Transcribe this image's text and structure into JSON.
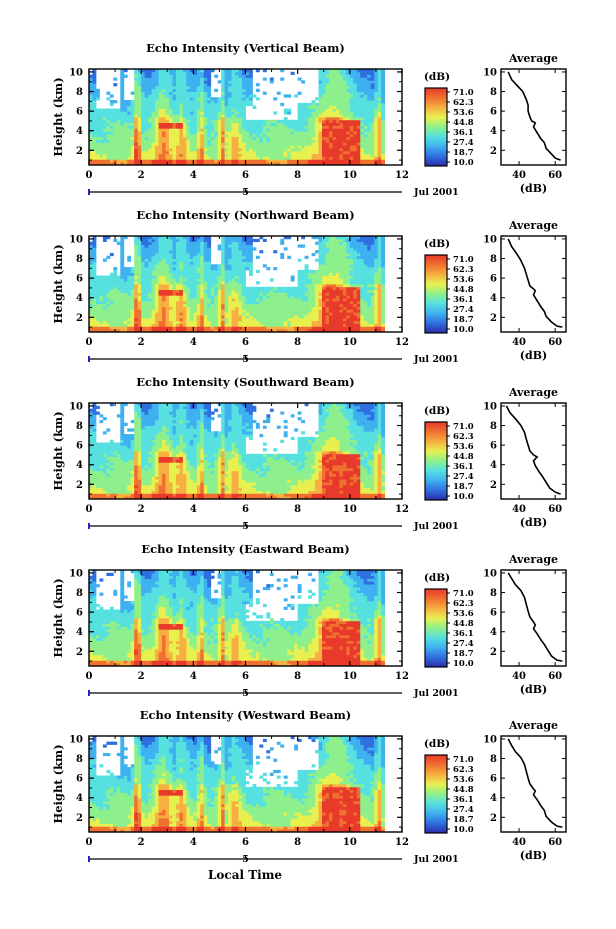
{
  "figure": {
    "date_label": "Jul 2001",
    "x_axis_title": "Local Time"
  },
  "colorbar": {
    "unit": "(dB)",
    "ticks": [
      "71.0",
      "62.3",
      "53.6",
      "44.8",
      "36.1",
      "27.4",
      "18.7",
      "10.0"
    ],
    "colors": [
      "#2c2ca8",
      "#2f6fe0",
      "#3fb0f0",
      "#56e0e0",
      "#8ef08c",
      "#e8f050",
      "#f5b040",
      "#f07030",
      "#e83a2a"
    ]
  },
  "average_panel_title": "Average",
  "average_x_unit": "(dB)",
  "chart_data": [
    {
      "type": "heatmap",
      "title": "Echo Intensity (Vertical Beam)",
      "ylabel": "Height (km)",
      "x_ticks": [
        "0",
        "2",
        "4",
        "6",
        "8",
        "10",
        "12"
      ],
      "y_ticks": [
        "2",
        "4",
        "6",
        "8",
        "10"
      ],
      "secondary_x_label": "5",
      "xlim": [
        0,
        12
      ],
      "ylim": [
        0.5,
        10.3
      ],
      "value_range_db": [
        10.0,
        71.0
      ],
      "average": {
        "xlabel": "(dB)",
        "x_ticks": [
          "40",
          "60"
        ],
        "xlim": [
          30,
          66
        ],
        "ylim": [
          0.5,
          10.3
        ],
        "profile": [
          [
            34,
            10.0
          ],
          [
            36,
            9.2
          ],
          [
            39,
            8.6
          ],
          [
            42,
            8.0
          ],
          [
            44,
            7.2
          ],
          [
            45,
            6.6
          ],
          [
            45,
            6.0
          ],
          [
            46,
            5.4
          ],
          [
            47,
            5.0
          ],
          [
            49,
            4.8
          ],
          [
            48,
            4.4
          ],
          [
            50,
            3.8
          ],
          [
            52,
            3.2
          ],
          [
            54,
            2.8
          ],
          [
            55,
            2.2
          ],
          [
            58,
            1.6
          ],
          [
            60,
            1.2
          ],
          [
            63,
            1.0
          ]
        ]
      }
    },
    {
      "type": "heatmap",
      "title": "Echo Intensity (Northward Beam)",
      "ylabel": "Height (km)",
      "x_ticks": [
        "0",
        "2",
        "4",
        "6",
        "8",
        "10",
        "12"
      ],
      "y_ticks": [
        "2",
        "4",
        "6",
        "8",
        "10"
      ],
      "secondary_x_label": "5",
      "xlim": [
        0,
        12
      ],
      "ylim": [
        0.5,
        10.3
      ],
      "value_range_db": [
        10.0,
        71.0
      ],
      "average": {
        "xlabel": "(dB)",
        "x_ticks": [
          "40",
          "60"
        ],
        "xlim": [
          30,
          66
        ],
        "ylim": [
          0.5,
          10.3
        ],
        "profile": [
          [
            34,
            10.0
          ],
          [
            36,
            9.2
          ],
          [
            39,
            8.4
          ],
          [
            41,
            7.8
          ],
          [
            43,
            7.0
          ],
          [
            44,
            6.4
          ],
          [
            45,
            5.8
          ],
          [
            46,
            5.2
          ],
          [
            48,
            4.9
          ],
          [
            49,
            4.7
          ],
          [
            48,
            4.3
          ],
          [
            50,
            3.7
          ],
          [
            52,
            3.1
          ],
          [
            54,
            2.6
          ],
          [
            55,
            2.1
          ],
          [
            58,
            1.5
          ],
          [
            61,
            1.1
          ],
          [
            64,
            1.0
          ]
        ]
      }
    },
    {
      "type": "heatmap",
      "title": "Echo Intensity (Southward Beam)",
      "ylabel": "Height (km)",
      "x_ticks": [
        "0",
        "2",
        "4",
        "6",
        "8",
        "10",
        "12"
      ],
      "y_ticks": [
        "2",
        "4",
        "6",
        "8",
        "10"
      ],
      "secondary_x_label": "5",
      "xlim": [
        0,
        12
      ],
      "ylim": [
        0.5,
        10.3
      ],
      "value_range_db": [
        10.0,
        71.0
      ],
      "average": {
        "xlabel": "(dB)",
        "x_ticks": [
          "40",
          "60"
        ],
        "xlim": [
          30,
          66
        ],
        "ylim": [
          0.5,
          10.3
        ],
        "profile": [
          [
            33,
            10.0
          ],
          [
            35,
            9.3
          ],
          [
            38,
            8.7
          ],
          [
            41,
            8.0
          ],
          [
            43,
            7.3
          ],
          [
            44,
            6.6
          ],
          [
            45,
            6.0
          ],
          [
            46,
            5.4
          ],
          [
            48,
            5.0
          ],
          [
            50,
            4.8
          ],
          [
            48,
            4.4
          ],
          [
            49,
            3.9
          ],
          [
            51,
            3.3
          ],
          [
            53,
            2.8
          ],
          [
            55,
            2.2
          ],
          [
            57,
            1.6
          ],
          [
            60,
            1.2
          ],
          [
            63,
            1.0
          ]
        ]
      }
    },
    {
      "type": "heatmap",
      "title": "Echo Intensity (Eastward Beam)",
      "ylabel": "Height (km)",
      "x_ticks": [
        "0",
        "2",
        "4",
        "6",
        "8",
        "10",
        "12"
      ],
      "y_ticks": [
        "2",
        "4",
        "6",
        "8",
        "10"
      ],
      "secondary_x_label": "5",
      "xlim": [
        0,
        12
      ],
      "ylim": [
        0.5,
        10.3
      ],
      "value_range_db": [
        10.0,
        71.0
      ],
      "average": {
        "xlabel": "(dB)",
        "x_ticks": [
          "40",
          "60"
        ],
        "xlim": [
          30,
          66
        ],
        "ylim": [
          0.5,
          10.3
        ],
        "profile": [
          [
            34,
            10.0
          ],
          [
            36,
            9.4
          ],
          [
            38,
            8.8
          ],
          [
            41,
            8.2
          ],
          [
            43,
            7.5
          ],
          [
            44,
            6.8
          ],
          [
            45,
            6.1
          ],
          [
            46,
            5.5
          ],
          [
            48,
            5.0
          ],
          [
            49,
            4.7
          ],
          [
            48,
            4.3
          ],
          [
            50,
            3.8
          ],
          [
            52,
            3.2
          ],
          [
            54,
            2.7
          ],
          [
            56,
            2.1
          ],
          [
            58,
            1.5
          ],
          [
            61,
            1.1
          ],
          [
            64,
            1.0
          ]
        ]
      }
    },
    {
      "type": "heatmap",
      "title": "Echo Intensity (Westward Beam)",
      "ylabel": "Height (km)",
      "x_ticks": [
        "0",
        "2",
        "4",
        "6",
        "8",
        "10",
        "12"
      ],
      "y_ticks": [
        "2",
        "4",
        "6",
        "8",
        "10"
      ],
      "secondary_x_label": "5",
      "xlim": [
        0,
        12
      ],
      "ylim": [
        0.5,
        10.3
      ],
      "value_range_db": [
        10.0,
        71.0
      ],
      "average": {
        "xlabel": "(dB)",
        "x_ticks": [
          "40",
          "60"
        ],
        "xlim": [
          30,
          66
        ],
        "ylim": [
          0.5,
          10.3
        ],
        "profile": [
          [
            34,
            10.0
          ],
          [
            36,
            9.3
          ],
          [
            38,
            8.7
          ],
          [
            41,
            8.1
          ],
          [
            43,
            7.4
          ],
          [
            44,
            6.7
          ],
          [
            45,
            6.0
          ],
          [
            46,
            5.4
          ],
          [
            48,
            4.9
          ],
          [
            49,
            4.7
          ],
          [
            48,
            4.3
          ],
          [
            50,
            3.8
          ],
          [
            52,
            3.2
          ],
          [
            54,
            2.7
          ],
          [
            55,
            2.1
          ],
          [
            58,
            1.5
          ],
          [
            61,
            1.1
          ],
          [
            64,
            1.0
          ]
        ]
      }
    }
  ]
}
